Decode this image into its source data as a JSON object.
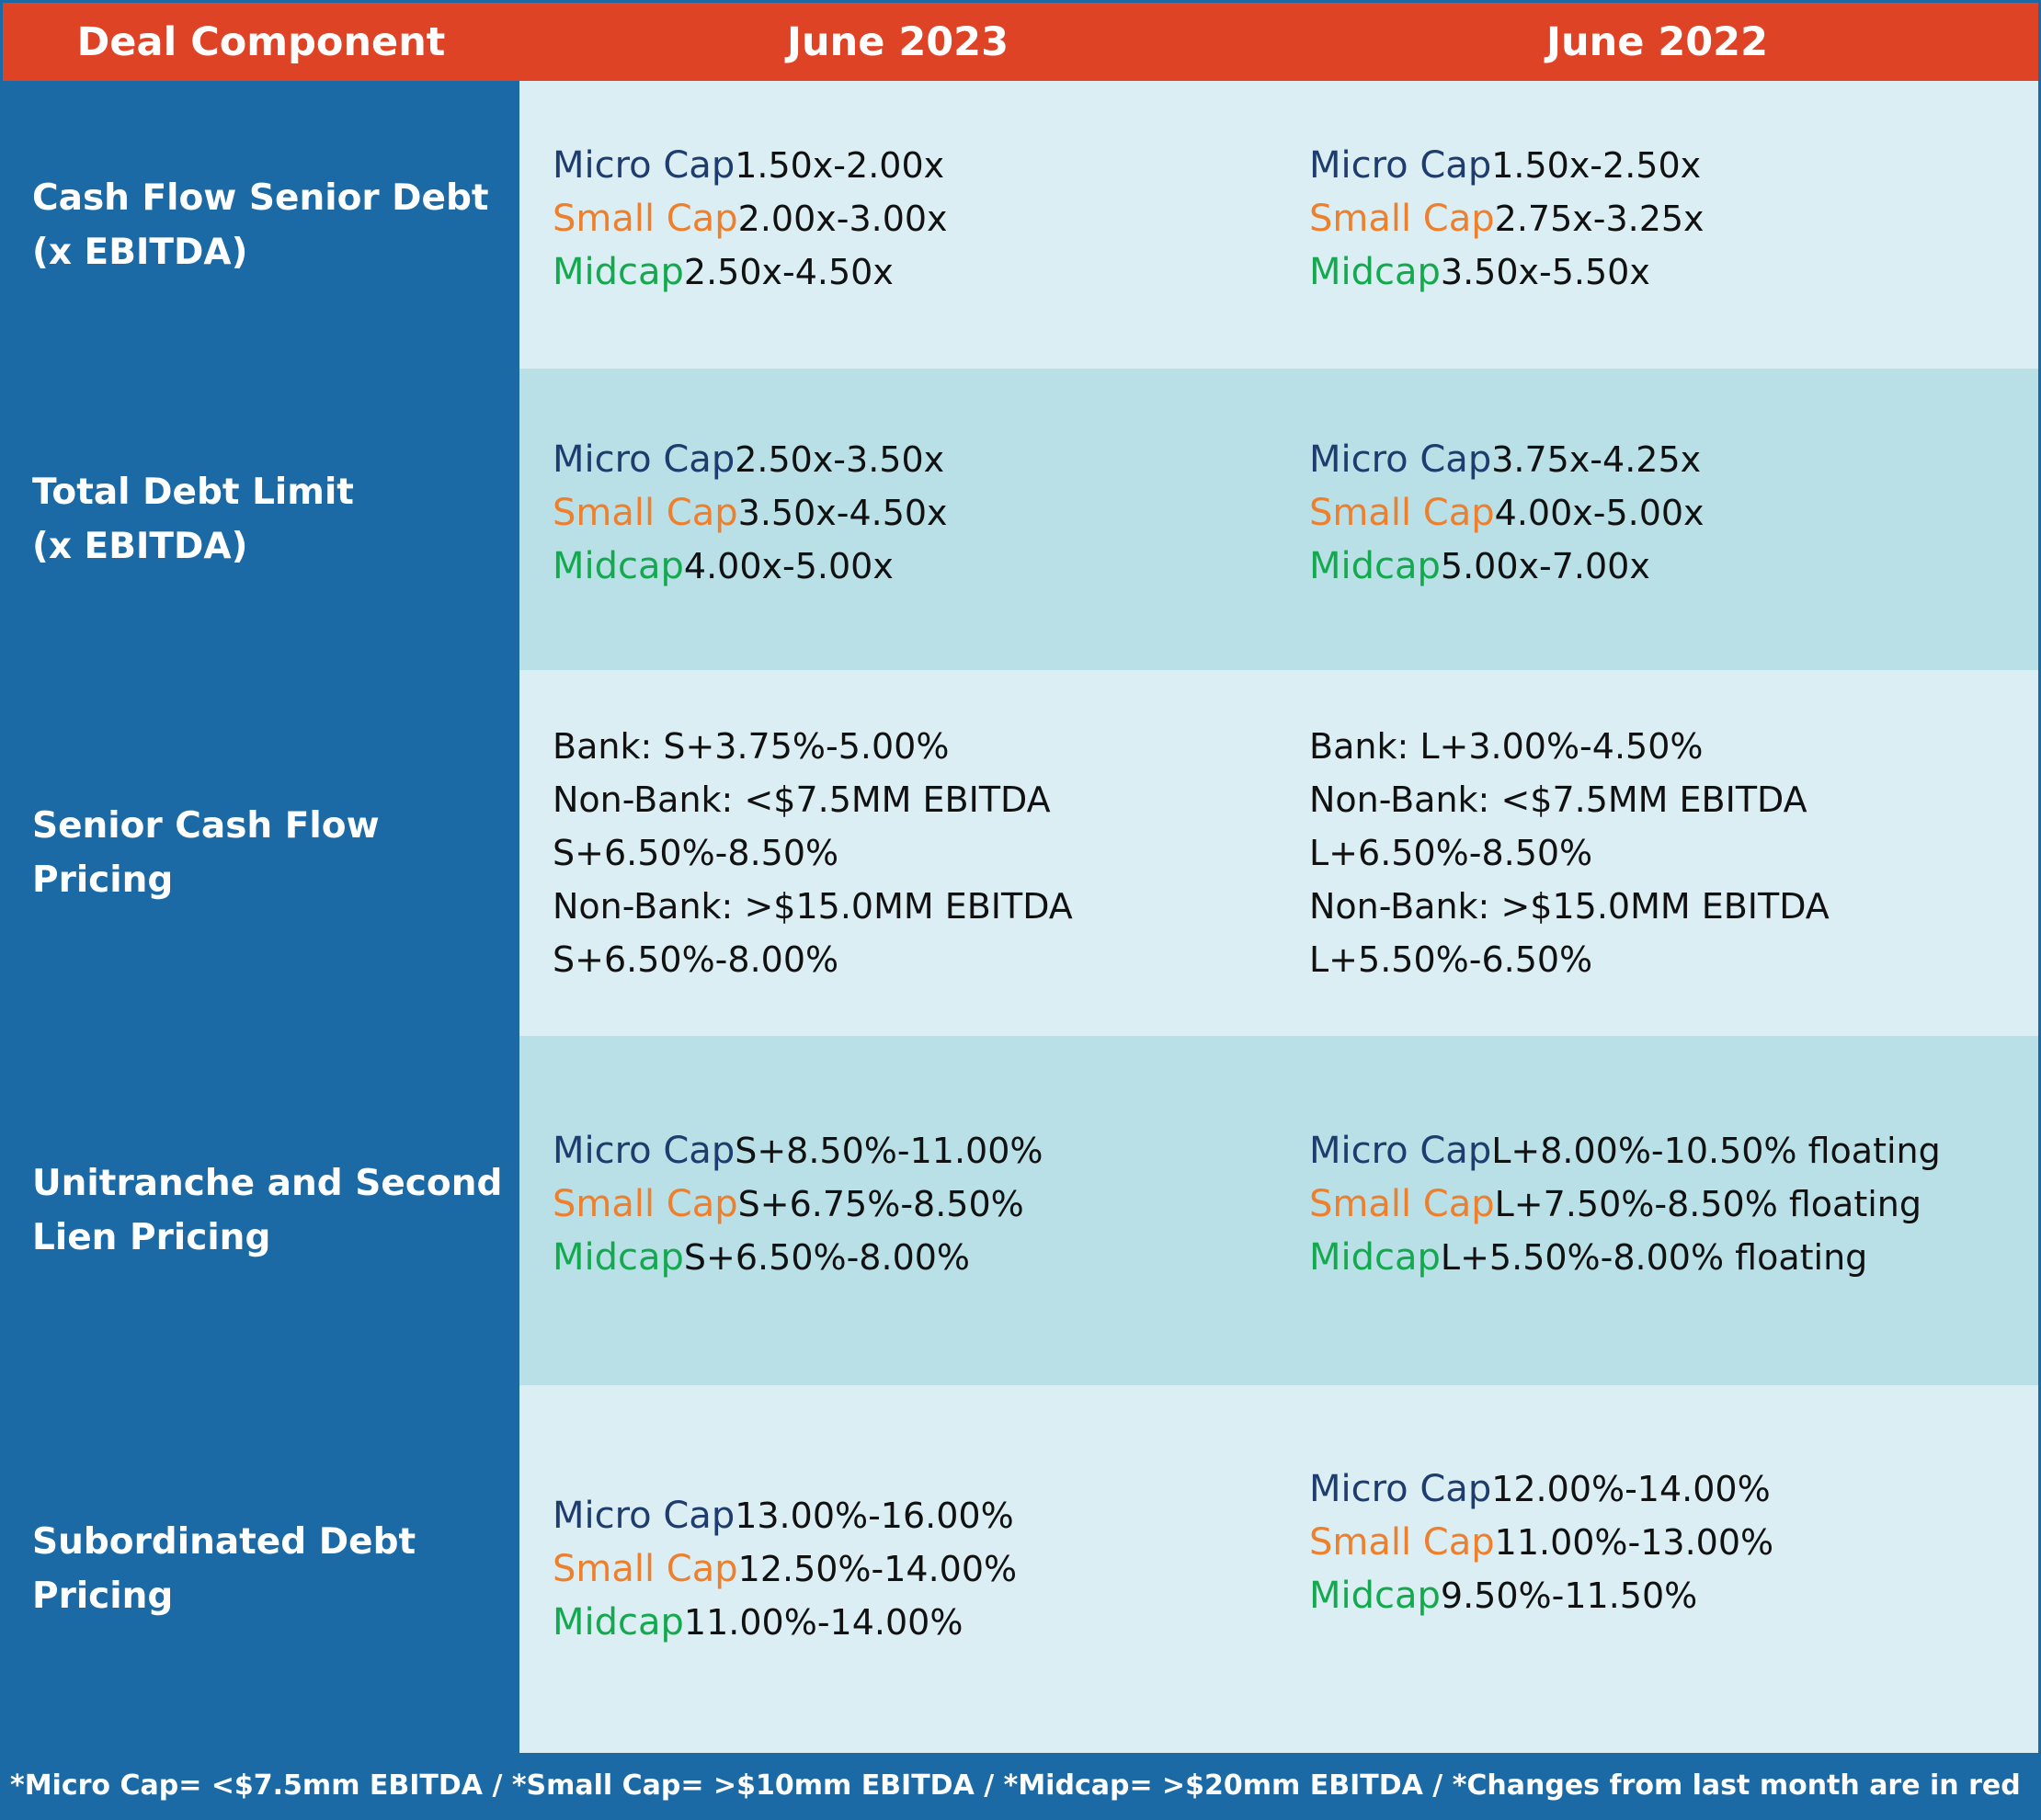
{
  "header": {
    "col0": "Deal Component",
    "col1": "June 2023",
    "col2": "June 2022"
  },
  "tier_labels": {
    "micro": "Micro Cap",
    "small": "Small Cap",
    "mid": "Midcap"
  },
  "rows": [
    {
      "label_line1": "Cash Flow Senior Debt",
      "label_line2": "(x EBITDA)",
      "june2023": {
        "micro": "1.50x-2.00x",
        "small": "2.00x-3.00x",
        "mid": "2.50x-4.50x"
      },
      "june2022": {
        "micro": "1.50x-2.50x",
        "small": "2.75x-3.25x",
        "mid": "3.50x-5.50x"
      }
    },
    {
      "label_line1": "Total Debt Limit",
      "label_line2": "(x EBITDA)",
      "june2023": {
        "micro": "2.50x-3.50x",
        "small": "3.50x-4.50x",
        "mid": "4.00x-5.00x"
      },
      "june2022": {
        "micro": "3.75x-4.25x",
        "small": "4.00x-5.00x",
        "mid": "5.00x-7.00x"
      }
    },
    {
      "label_line1": "Senior Cash Flow Pricing",
      "june2023": {
        "bank": "Bank: S+3.75%-5.00%",
        "nonbank_small": "Non-Bank: <$7.5MM EBITDA S+6.50%-8.50%",
        "nonbank_large": "Non-Bank: >$15.0MM EBITDA S+6.50%-8.00%"
      },
      "june2022": {
        "bank": "Bank: L+3.00%-4.50%",
        "nonbank_small": "Non-Bank: <$7.5MM EBITDA L+6.50%-8.50%",
        "nonbank_large": "Non-Bank: >$15.0MM EBITDA L+5.50%-6.50%"
      }
    },
    {
      "label_line1": "Unitranche and Second",
      "label_line2": "Lien Pricing",
      "june2023": {
        "micro": "S+8.50%-11.00%",
        "small": "S+6.75%-8.50%",
        "mid": "S+6.50%-8.00%"
      },
      "june2022": {
        "micro": "L+8.00%-10.50% floating",
        "small": "L+7.50%-8.50% floating",
        "mid": "L+5.50%-8.00% floating"
      }
    },
    {
      "label_line1": "Subordinated Debt Pricing",
      "june2023": {
        "micro": "13.00%-16.00%",
        "small": "12.50%-14.00%",
        "mid": "11.00%-14.00%"
      },
      "june2022": {
        "micro": "12.00%-14.00%",
        "small": "11.00%-13.00%",
        "mid": "9.50%-11.50%"
      }
    }
  ],
  "footer": "*Micro Cap= <$7.5mm EBITDA / *Small Cap= >$10mm EBITDA / *Midcap= >$20mm EBITDA / *Changes from last month are in red",
  "colors": {
    "header_bg": "#de4326",
    "label_bg": "#1b6aa5",
    "row_light": "#dbeef3",
    "row_mid": "#b8e0e6",
    "micro": "#1f3c6e",
    "small": "#ee7f2d",
    "mid": "#15a94f"
  }
}
